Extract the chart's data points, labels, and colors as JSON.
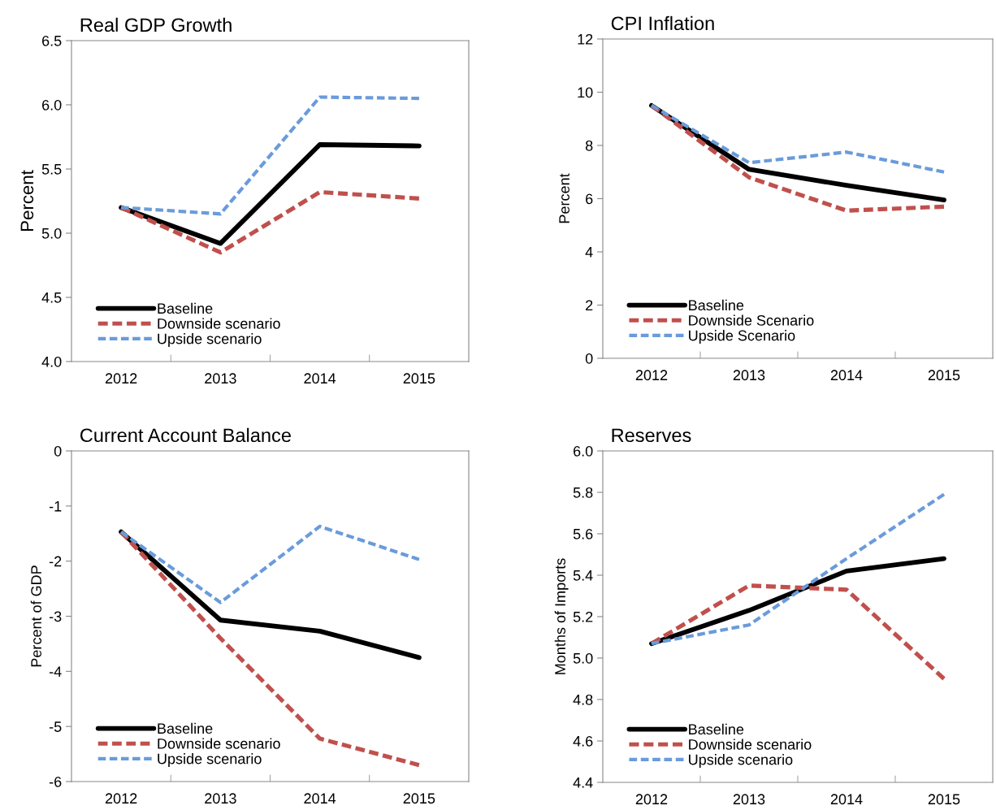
{
  "chart_data": [
    {
      "type": "line",
      "title": "Real GDP Growth",
      "ylabel": "Percent",
      "categories": [
        "2012",
        "2013",
        "2014",
        "2015"
      ],
      "ylim": [
        4.0,
        6.5
      ],
      "yticks": [
        {
          "value": 4.0,
          "label": "4.0"
        },
        {
          "value": 4.5,
          "label": "4.5"
        },
        {
          "value": 5.0,
          "label": "5.0"
        },
        {
          "value": 5.5,
          "label": "5.5"
        },
        {
          "value": 6.0,
          "label": "6.0"
        },
        {
          "value": 6.5,
          "label": "6.5"
        }
      ],
      "grid": false,
      "legend": "bottom left",
      "series": [
        {
          "name": "Baseline",
          "color": "#000000",
          "line_style": "solid",
          "values": [
            5.2,
            4.92,
            5.69,
            5.68
          ]
        },
        {
          "name": "Downside scenario",
          "color": "#c0504d",
          "line_style": "dashed",
          "values": [
            5.2,
            4.85,
            5.32,
            5.27
          ]
        },
        {
          "name": "Upside scenario",
          "color": "#6a9bdb",
          "line_style": "dashed",
          "values": [
            5.2,
            5.15,
            6.06,
            6.05
          ]
        }
      ]
    },
    {
      "type": "line",
      "title": "CPI Inflation",
      "ylabel": "Percent",
      "categories": [
        "2012",
        "2013",
        "2014",
        "2015"
      ],
      "ylim": [
        0,
        12
      ],
      "yticks": [
        0,
        2,
        4,
        6,
        8,
        10,
        12
      ],
      "grid": false,
      "legend": "bottom left",
      "series": [
        {
          "name": "Baseline",
          "color": "#000000",
          "line_style": "solid",
          "values": [
            9.5,
            7.1,
            6.5,
            5.95
          ]
        },
        {
          "name": "Downside Scenario",
          "color": "#c0504d",
          "line_style": "dashed",
          "values": [
            9.5,
            6.8,
            5.55,
            5.7
          ]
        },
        {
          "name": "Upside Scenario",
          "color": "#6a9bdb",
          "line_style": "dashed",
          "values": [
            9.5,
            7.35,
            7.75,
            7.0
          ]
        }
      ]
    },
    {
      "type": "line",
      "title": "Current Account Balance",
      "ylabel": "Percent of GDP",
      "categories": [
        "2012",
        "2013",
        "2014",
        "2015"
      ],
      "ylim": [
        -6,
        0
      ],
      "yticks": [
        -6,
        -5,
        -4,
        -3,
        -2,
        -1,
        0
      ],
      "grid": false,
      "legend": "bottom left",
      "series": [
        {
          "name": "Baseline",
          "color": "#000000",
          "line_style": "solid",
          "values": [
            -1.47,
            -3.07,
            -3.27,
            -3.75
          ]
        },
        {
          "name": "Downside scenario",
          "color": "#c0504d",
          "line_style": "dashed",
          "values": [
            -1.47,
            -3.4,
            -5.22,
            -5.7
          ]
        },
        {
          "name": "Upside scenario",
          "color": "#6a9bdb",
          "line_style": "dashed",
          "values": [
            -1.47,
            -2.75,
            -1.37,
            -1.97
          ]
        }
      ]
    },
    {
      "type": "line",
      "title": "Reserves",
      "ylabel": "Months of Imports",
      "categories": [
        "2012",
        "2013",
        "2014",
        "2015"
      ],
      "ylim": [
        4.4,
        6.0
      ],
      "yticks": [
        {
          "value": 4.4,
          "label": "4.4"
        },
        {
          "value": 4.6,
          "label": "4.6"
        },
        {
          "value": 4.8,
          "label": "4.8"
        },
        {
          "value": 5.0,
          "label": "5.0"
        },
        {
          "value": 5.2,
          "label": "5.2"
        },
        {
          "value": 5.4,
          "label": "5.4"
        },
        {
          "value": 5.6,
          "label": "5.6"
        },
        {
          "value": 5.8,
          "label": "5.8"
        },
        {
          "value": 6.0,
          "label": "6.0"
        }
      ],
      "grid": false,
      "legend": "bottom left",
      "series": [
        {
          "name": "Baseline",
          "color": "#000000",
          "line_style": "solid",
          "values": [
            5.07,
            5.23,
            5.42,
            5.48
          ]
        },
        {
          "name": "Downside scenario",
          "color": "#c0504d",
          "line_style": "dashed",
          "values": [
            5.07,
            5.35,
            5.33,
            4.9
          ]
        },
        {
          "name": "Upside scenario",
          "color": "#6a9bdb",
          "line_style": "dashed",
          "values": [
            5.07,
            5.16,
            5.48,
            5.79
          ]
        }
      ]
    }
  ]
}
